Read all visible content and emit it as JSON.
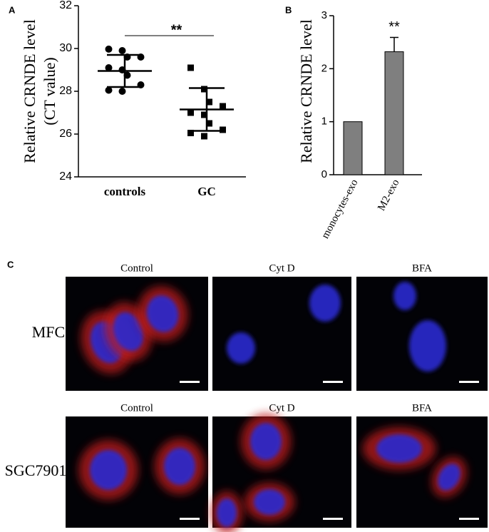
{
  "chart_data": [
    {
      "type": "scatter",
      "panel": "A",
      "y_label": "Relative CRNDE level",
      "y_label_2": "(CT value)",
      "categories": [
        "controls",
        "GC"
      ],
      "values": [
        [
          29.97,
          29.9,
          29.6,
          29.6,
          29.1,
          29.0,
          28.75,
          28.3,
          28.05,
          28.0
        ],
        [
          29.1,
          28.1,
          27.5,
          27.3,
          27.0,
          26.9,
          26.5,
          26.2,
          26.05,
          25.9
        ]
      ],
      "means": [
        28.95,
        27.15
      ],
      "sd": [
        0.75,
        1.0
      ],
      "annotation": "**",
      "ylim": [
        24,
        32
      ],
      "yticks": [
        24,
        26,
        28,
        30,
        32
      ],
      "color": "#000000"
    },
    {
      "type": "bar",
      "panel": "B",
      "y_label": "Relative CRNDE level",
      "categories": [
        "monocytes-exo",
        "M2-exo"
      ],
      "values": [
        1,
        2.32
      ],
      "errors": [
        null,
        0.27
      ],
      "annotation": "**",
      "ylim": [
        0,
        3
      ],
      "yticks": [
        0,
        1,
        2,
        3
      ],
      "color": "#7f7f7f"
    }
  ],
  "panel_c": {
    "label": "C",
    "rows": [
      {
        "label": "MFC",
        "columns": [
          "Control",
          "Cyt D",
          "BFA"
        ]
      },
      {
        "label": "SGC7901",
        "columns": [
          "Control",
          "Cyt D",
          "BFA"
        ]
      }
    ]
  }
}
